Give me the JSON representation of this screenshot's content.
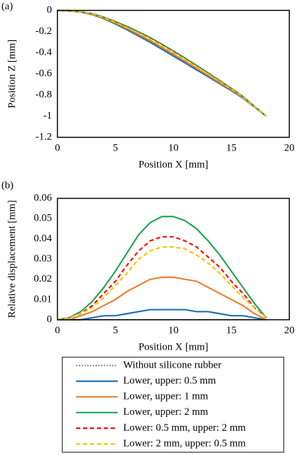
{
  "chart_data": [
    {
      "type": "line",
      "label": "(a)",
      "xlabel": "Position X [mm]",
      "ylabel": "Position Z [mm]",
      "x": [
        0,
        1,
        2,
        3,
        4,
        5,
        6,
        7,
        8,
        9,
        10,
        11,
        12,
        13,
        14,
        15,
        16,
        17,
        18
      ],
      "xlim": [
        0,
        20
      ],
      "xticks": [
        0,
        5,
        10,
        15,
        20
      ],
      "ylim": [
        -1.2,
        0
      ],
      "yticks": [
        0,
        -0.2,
        -0.4,
        -0.6,
        -0.8,
        -1,
        -1.2
      ],
      "grid": false,
      "series": [
        {
          "color": "#999999",
          "linestyle": "dotted",
          "values": [
            0,
            -0.004,
            -0.016,
            -0.04,
            -0.08,
            -0.13,
            -0.185,
            -0.245,
            -0.305,
            -0.37,
            -0.435,
            -0.5,
            -0.565,
            -0.63,
            -0.695,
            -0.76,
            -0.83,
            -0.915,
            -1
          ]
        },
        {
          "color": "#1f6fb8",
          "linestyle": "solid",
          "values": [
            0,
            -0.004,
            -0.016,
            -0.039,
            -0.078,
            -0.128,
            -0.182,
            -0.241,
            -0.3,
            -0.365,
            -0.43,
            -0.495,
            -0.561,
            -0.626,
            -0.692,
            -0.758,
            -0.828,
            -0.914,
            -1
          ]
        },
        {
          "color": "#ed7d31",
          "linestyle": "solid",
          "values": [
            0,
            -0.004,
            -0.014,
            -0.036,
            -0.073,
            -0.12,
            -0.171,
            -0.228,
            -0.285,
            -0.349,
            -0.414,
            -0.48,
            -0.546,
            -0.614,
            -0.682,
            -0.75,
            -0.823,
            -0.912,
            -1
          ]
        },
        {
          "color": "#21a650",
          "linestyle": "solid",
          "values": [
            0,
            -0.003,
            -0.012,
            -0.031,
            -0.064,
            -0.106,
            -0.152,
            -0.203,
            -0.257,
            -0.319,
            -0.384,
            -0.451,
            -0.52,
            -0.591,
            -0.663,
            -0.736,
            -0.814,
            -0.907,
            -0.999
          ]
        },
        {
          "color": "#ff0000",
          "linestyle": "dashed",
          "values": [
            0,
            -0.003,
            -0.013,
            -0.033,
            -0.067,
            -0.111,
            -0.158,
            -0.211,
            -0.266,
            -0.329,
            -0.394,
            -0.461,
            -0.529,
            -0.599,
            -0.669,
            -0.741,
            -0.817,
            -0.909,
            -0.999
          ]
        },
        {
          "color": "#ffc000",
          "linestyle": "dashed",
          "values": [
            0,
            -0.003,
            -0.013,
            -0.034,
            -0.069,
            -0.113,
            -0.162,
            -0.215,
            -0.271,
            -0.334,
            -0.399,
            -0.465,
            -0.533,
            -0.602,
            -0.672,
            -0.743,
            -0.819,
            -0.909,
            -0.999
          ]
        }
      ]
    },
    {
      "type": "line",
      "label": "(b)",
      "xlabel": "Position X [mm]",
      "ylabel": "Relative displacement [mm]",
      "x": [
        0,
        1,
        2,
        3,
        4,
        5,
        6,
        7,
        8,
        9,
        10,
        11,
        12,
        13,
        14,
        15,
        16,
        17,
        18
      ],
      "xlim": [
        0,
        20
      ],
      "xticks": [
        0,
        5,
        10,
        15,
        20
      ],
      "ylim": [
        0,
        0.06
      ],
      "yticks": [
        0,
        0.01,
        0.02,
        0.03,
        0.04,
        0.05,
        0.06
      ],
      "grid": false,
      "legend": "below",
      "series": [
        {
          "name": "Without silicone rubber",
          "color": "#999999",
          "linestyle": "dotted",
          "values": [
            0,
            0,
            0,
            0,
            0,
            0,
            0,
            0,
            0,
            0,
            0,
            0,
            0,
            0,
            0,
            0,
            0,
            0,
            0
          ]
        },
        {
          "name": "Lower, upper: 0.5 mm",
          "color": "#1f6fb8",
          "linestyle": "solid",
          "values": [
            0,
            0,
            0,
            0.001,
            0.002,
            0.002,
            0.003,
            0.004,
            0.005,
            0.005,
            0.005,
            0.005,
            0.004,
            0.004,
            0.003,
            0.002,
            0.002,
            0.001,
            0
          ]
        },
        {
          "name": "Lower, upper: 1 mm",
          "color": "#ed7d31",
          "linestyle": "solid",
          "values": [
            0,
            0,
            0.002,
            0.004,
            0.007,
            0.01,
            0.014,
            0.017,
            0.02,
            0.021,
            0.021,
            0.02,
            0.019,
            0.016,
            0.013,
            0.01,
            0.007,
            0.003,
            0
          ]
        },
        {
          "name": "Lower, upper: 2 mm",
          "color": "#21a650",
          "linestyle": "solid",
          "values": [
            0,
            0.001,
            0.004,
            0.009,
            0.016,
            0.024,
            0.033,
            0.042,
            0.048,
            0.051,
            0.051,
            0.049,
            0.045,
            0.039,
            0.032,
            0.024,
            0.016,
            0.008,
            0.001
          ]
        },
        {
          "name": "Lower: 0.5 mm, upper: 2 mm",
          "color": "#ff0000",
          "linestyle": "dashed",
          "values": [
            0,
            0.001,
            0.003,
            0.007,
            0.013,
            0.019,
            0.027,
            0.034,
            0.039,
            0.041,
            0.041,
            0.039,
            0.036,
            0.031,
            0.026,
            0.019,
            0.013,
            0.006,
            0.001
          ]
        },
        {
          "name": "Lower: 2 mm, upper: 0.5 mm",
          "color": "#ffc000",
          "linestyle": "dashed",
          "values": [
            0,
            0.001,
            0.003,
            0.006,
            0.011,
            0.017,
            0.023,
            0.03,
            0.034,
            0.036,
            0.036,
            0.035,
            0.032,
            0.028,
            0.023,
            0.017,
            0.011,
            0.006,
            0.001
          ]
        }
      ]
    }
  ]
}
